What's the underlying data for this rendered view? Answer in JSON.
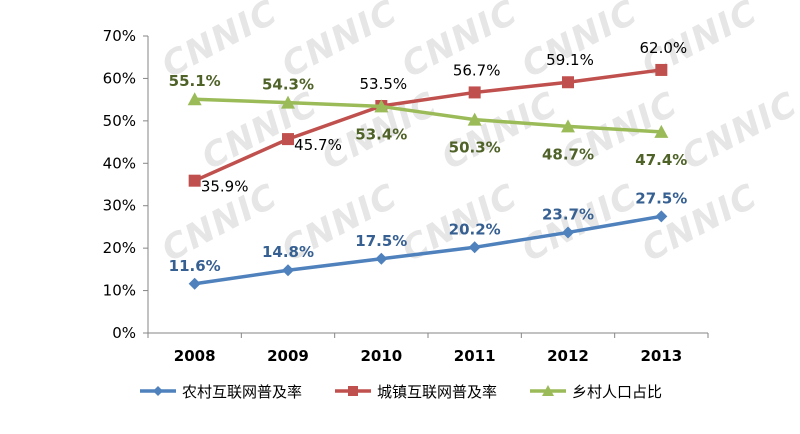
{
  "chart_data": {
    "type": "line",
    "title": "",
    "xlabel": "",
    "ylabel": "",
    "categories": [
      "2008",
      "2009",
      "2010",
      "2011",
      "2012",
      "2013"
    ],
    "ylim": [
      0,
      70
    ],
    "yticks": [
      "0%",
      "10%",
      "20%",
      "30%",
      "40%",
      "50%",
      "60%",
      "70%"
    ],
    "grid": false,
    "legend": "bottom",
    "watermark": "CNNIC",
    "series": [
      {
        "name": "农村互联网普及率",
        "values": [
          11.6,
          14.8,
          17.5,
          20.2,
          23.7,
          27.5
        ],
        "labels": [
          "11.6%",
          "14.8%",
          "17.5%",
          "20.2%",
          "23.7%",
          "27.5%"
        ],
        "color": "#4f81bd",
        "label_color": "#376092",
        "marker": "diamond-icon"
      },
      {
        "name": "城镇互联网普及率",
        "values": [
          35.9,
          45.7,
          53.5,
          56.7,
          59.1,
          62.0
        ],
        "labels": [
          "35.9%",
          "45.7%",
          "53.5%",
          "56.7%",
          "59.1%",
          "62.0%"
        ],
        "color": "#c0504d",
        "label_color": "#000000",
        "marker": "square-icon"
      },
      {
        "name": "乡村人口占比",
        "values": [
          55.1,
          54.3,
          53.4,
          50.3,
          48.7,
          47.4
        ],
        "labels": [
          "55.1%",
          "54.3%",
          "53.4%",
          "50.3%",
          "48.7%",
          "47.4%"
        ],
        "color": "#9bbb59",
        "label_color": "#4f6228",
        "marker": "triangle-icon"
      }
    ]
  }
}
